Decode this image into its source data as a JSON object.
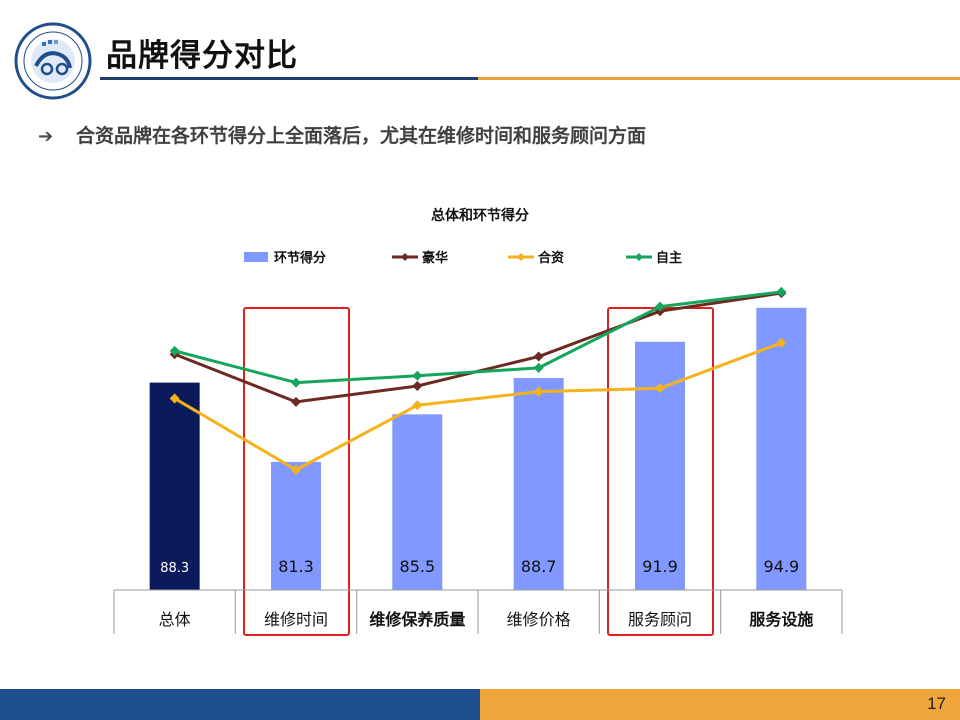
{
  "slide": {
    "title": "品牌得分对比",
    "bullet": "合资品牌在各环节得分上全面落后，尤其在维修时间和服务顾问方面",
    "page_number": "17",
    "colors": {
      "accent_dark": "#1f3e6e",
      "accent_gold": "#e9a23b",
      "highlight": "#e02020"
    }
  },
  "chart_data": {
    "type": "bar",
    "title": "总体和环节得分",
    "categories": [
      "总体",
      "维修时间",
      "维修保养质量",
      "维修价格",
      "服务顾问",
      "服务设施"
    ],
    "bold_categories": [
      false,
      false,
      true,
      false,
      false,
      true
    ],
    "highlighted_categories": [
      "维修时间",
      "服务顾问"
    ],
    "legend_position": "top",
    "ylim": [
      70,
      100
    ],
    "grid": false,
    "series": [
      {
        "name": "环节得分",
        "type": "bar",
        "color": "#8098ff",
        "values": [
          88.3,
          81.3,
          85.5,
          88.7,
          91.9,
          94.9
        ],
        "data_labels": [
          "88.3",
          "81.3",
          "85.5",
          "88.7",
          "91.9",
          "94.9"
        ]
      },
      {
        "name": "豪华",
        "type": "line",
        "color": "#6b2a22",
        "values": [
          90.8,
          86.6,
          88.0,
          90.6,
          94.6,
          96.2
        ]
      },
      {
        "name": "合资",
        "type": "line",
        "color": "#f5b21c",
        "values": [
          86.9,
          80.6,
          86.3,
          87.5,
          87.8,
          91.8
        ]
      },
      {
        "name": "自主",
        "type": "line",
        "color": "#16a55c",
        "values": [
          91.1,
          88.3,
          88.9,
          89.6,
          95.0,
          96.3
        ]
      }
    ]
  }
}
